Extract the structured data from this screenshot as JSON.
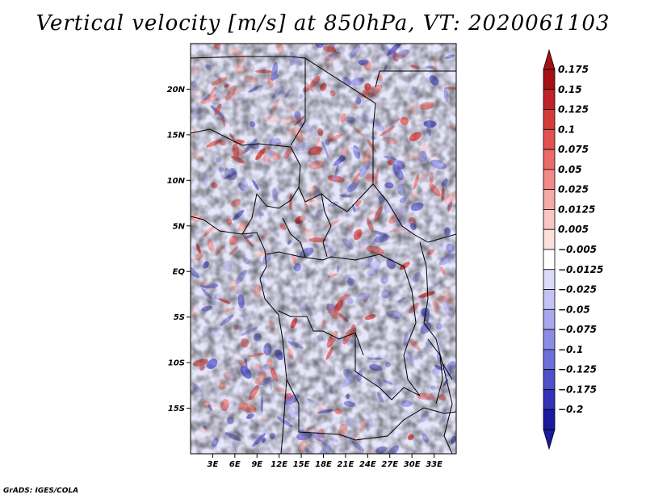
{
  "title": "Vertical velocity [m/s] at 850hPa, VT: 2020061103",
  "credit": "GrADS: IGES/COLA",
  "map": {
    "lon_range": [
      0,
      36
    ],
    "lat_range": [
      -20,
      25
    ],
    "lat_ticks": [
      {
        "value": 20,
        "label": "20N"
      },
      {
        "value": 15,
        "label": "15N"
      },
      {
        "value": 10,
        "label": "10N"
      },
      {
        "value": 5,
        "label": "5N"
      },
      {
        "value": 0,
        "label": "EQ"
      },
      {
        "value": -5,
        "label": "5S"
      },
      {
        "value": -10,
        "label": "10S"
      },
      {
        "value": -15,
        "label": "15S"
      }
    ],
    "lon_ticks": [
      {
        "value": 3,
        "label": "3E"
      },
      {
        "value": 6,
        "label": "6E"
      },
      {
        "value": 9,
        "label": "9E"
      },
      {
        "value": 12,
        "label": "12E"
      },
      {
        "value": 15,
        "label": "15E"
      },
      {
        "value": 18,
        "label": "18E"
      },
      {
        "value": 21,
        "label": "21E"
      },
      {
        "value": 24,
        "label": "24E"
      },
      {
        "value": 27,
        "label": "27E"
      },
      {
        "value": 30,
        "label": "30E"
      },
      {
        "value": 33,
        "label": "33E"
      }
    ]
  },
  "colorbar": {
    "levels": [
      {
        "label": "0.175",
        "color": "#a50f15"
      },
      {
        "label": "0.15",
        "color": "#c0232a"
      },
      {
        "label": "0.125",
        "color": "#d73a3a"
      },
      {
        "label": "0.1",
        "color": "#e45050"
      },
      {
        "label": "0.075",
        "color": "#ec6a6a"
      },
      {
        "label": "0.05",
        "color": "#f28a88"
      },
      {
        "label": "0.025",
        "color": "#f6aaa8"
      },
      {
        "label": "0.0125",
        "color": "#f9c6c4"
      },
      {
        "label": "0.005",
        "color": "#fce0de"
      },
      {
        "label": "-0.005",
        "color": "#ffffff"
      },
      {
        "label": "-0.0125",
        "color": "#dcdcf8"
      },
      {
        "label": "-0.025",
        "color": "#c4c4f4"
      },
      {
        "label": "-0.05",
        "color": "#a8a8ee"
      },
      {
        "label": "-0.075",
        "color": "#8c8ce6"
      },
      {
        "label": "-0.1",
        "color": "#6e6edc"
      },
      {
        "label": "-0.125",
        "color": "#5050cc"
      },
      {
        "label": "-0.175",
        "color": "#3232b8"
      },
      {
        "label": "-0.2",
        "color": "#1a1aa0"
      }
    ],
    "top_color": "#a50f15",
    "bottom_color": "#1a1aa0"
  }
}
